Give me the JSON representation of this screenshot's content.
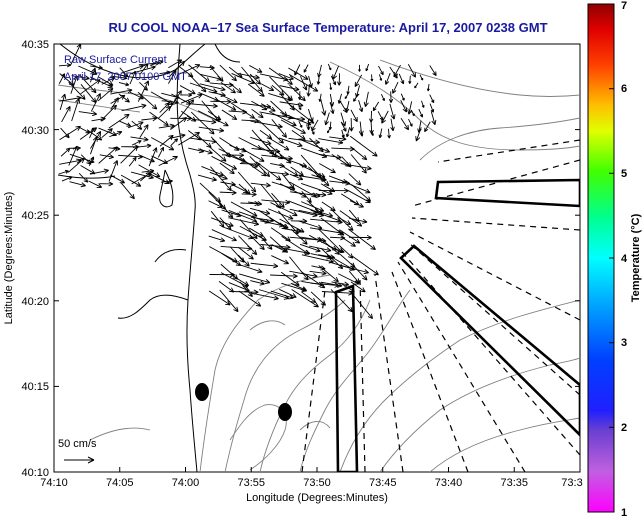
{
  "title": "RU COOL  NOAA–17  Sea Surface Temperature:  April 17, 2007 0238 GMT",
  "legend": {
    "line1": "Raw Surface Current",
    "line2": "April 17, 2007 0100 GMT",
    "scale_label": "50 cm/s"
  },
  "axes": {
    "xlabel": "Longitude (Degrees:Minutes)",
    "ylabel": "Latitude (Degrees:Minutes)",
    "x_ticks": [
      "74:10",
      "74:05",
      "74:00",
      "73:55",
      "73:50",
      "73:45",
      "73:40",
      "73:35",
      "73:3"
    ],
    "y_ticks": [
      "40:35",
      "40:30",
      "40:25",
      "40:20",
      "40:15",
      "40:10"
    ]
  },
  "colorbar": {
    "label": "Temperature (°C)",
    "ticks": [
      "7",
      "6",
      "5",
      "4",
      "3",
      "2",
      "1"
    ],
    "min": 1,
    "max": 7
  },
  "colors": {
    "title": "#1a1aa0",
    "legend_text": "#1a1aa0",
    "coast": "#000000",
    "bathymetry": "#808080"
  }
}
